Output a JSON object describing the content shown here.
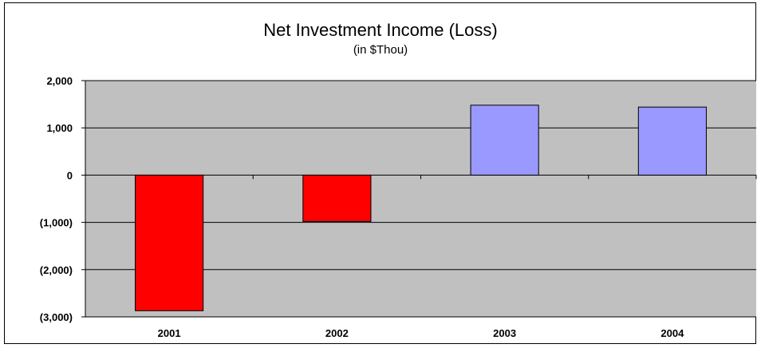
{
  "chart_data": {
    "type": "bar",
    "title": "Net Investment Income (Loss)",
    "subtitle": "(in $Thou)",
    "categories": [
      "2001",
      "2002",
      "2003",
      "2004"
    ],
    "values": [
      -2870,
      -980,
      1480,
      1440
    ],
    "ylim": [
      -3000,
      2000
    ],
    "yticks": [
      2000,
      1000,
      0,
      -1000,
      -2000,
      -3000
    ],
    "ytick_labels": [
      "2,000",
      "1,000",
      "0",
      "(1,000)",
      "(2,000)",
      "(3,000)"
    ],
    "grid": true,
    "legend": "none",
    "colors": {
      "negative": "#ff0000",
      "positive": "#9999ff",
      "plot_background": "#c0c0c0",
      "gridline": "#000000"
    }
  }
}
